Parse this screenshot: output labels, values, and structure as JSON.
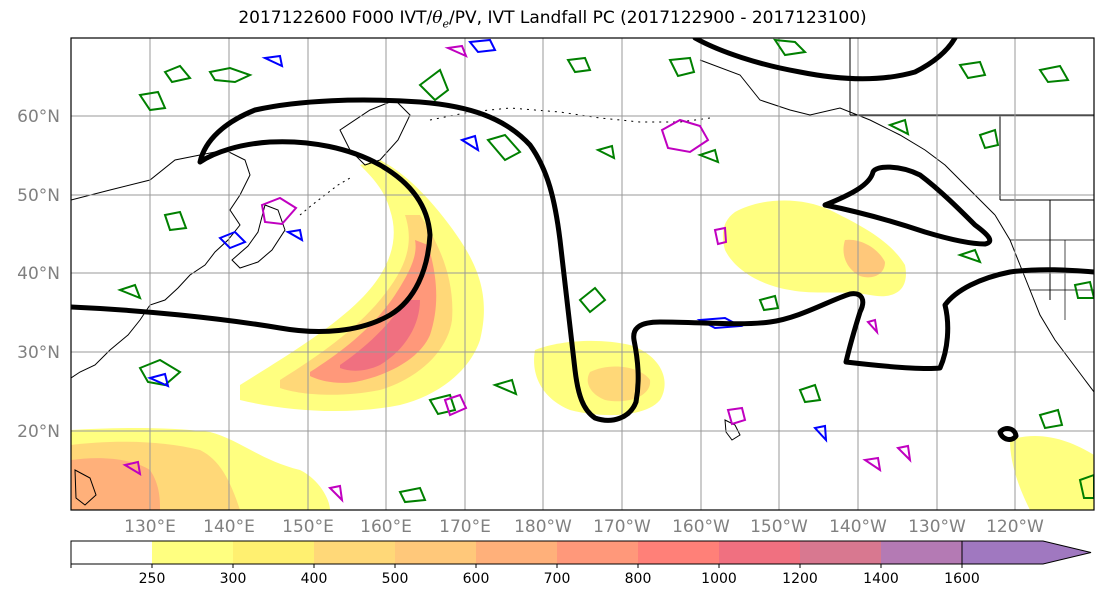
{
  "title": {
    "prefix": "2017122600 F000 IVT/",
    "theta_symbol": "θ",
    "theta_sub": "e",
    "suffix": "/PV, IVT Landfall PC (2017122900 - 2017123100)"
  },
  "latitude_labels": [
    "60°N",
    "50°N",
    "40°N",
    "30°N",
    "20°N"
  ],
  "longitude_labels": [
    "130°E",
    "140°E",
    "150°E",
    "160°E",
    "170°E",
    "180°W",
    "170°W",
    "160°W",
    "150°W",
    "140°W",
    "130°W",
    "120°W"
  ],
  "colorbar": {
    "tick_labels": [
      "250",
      "300",
      "400",
      "500",
      "600",
      "700",
      "800",
      "1000",
      "1200",
      "1400",
      "1600"
    ],
    "colors": [
      "#ffffff",
      "#ffff80",
      "#fff070",
      "#ffd878",
      "#ffc87a",
      "#ffb07a",
      "#ff987a",
      "#ff8078",
      "#f07080",
      "#d87890",
      "#b47ab4",
      "#a078c0"
    ]
  },
  "colors": {
    "land_outline": "#000000",
    "ivt_pc_contour": "#000000",
    "theta_e_contour": "#008000",
    "pv_contour_blue": "#0000ff",
    "pv_contour_magenta": "#c000c0",
    "gridline": "#999999",
    "tick_label": "#808080"
  }
}
